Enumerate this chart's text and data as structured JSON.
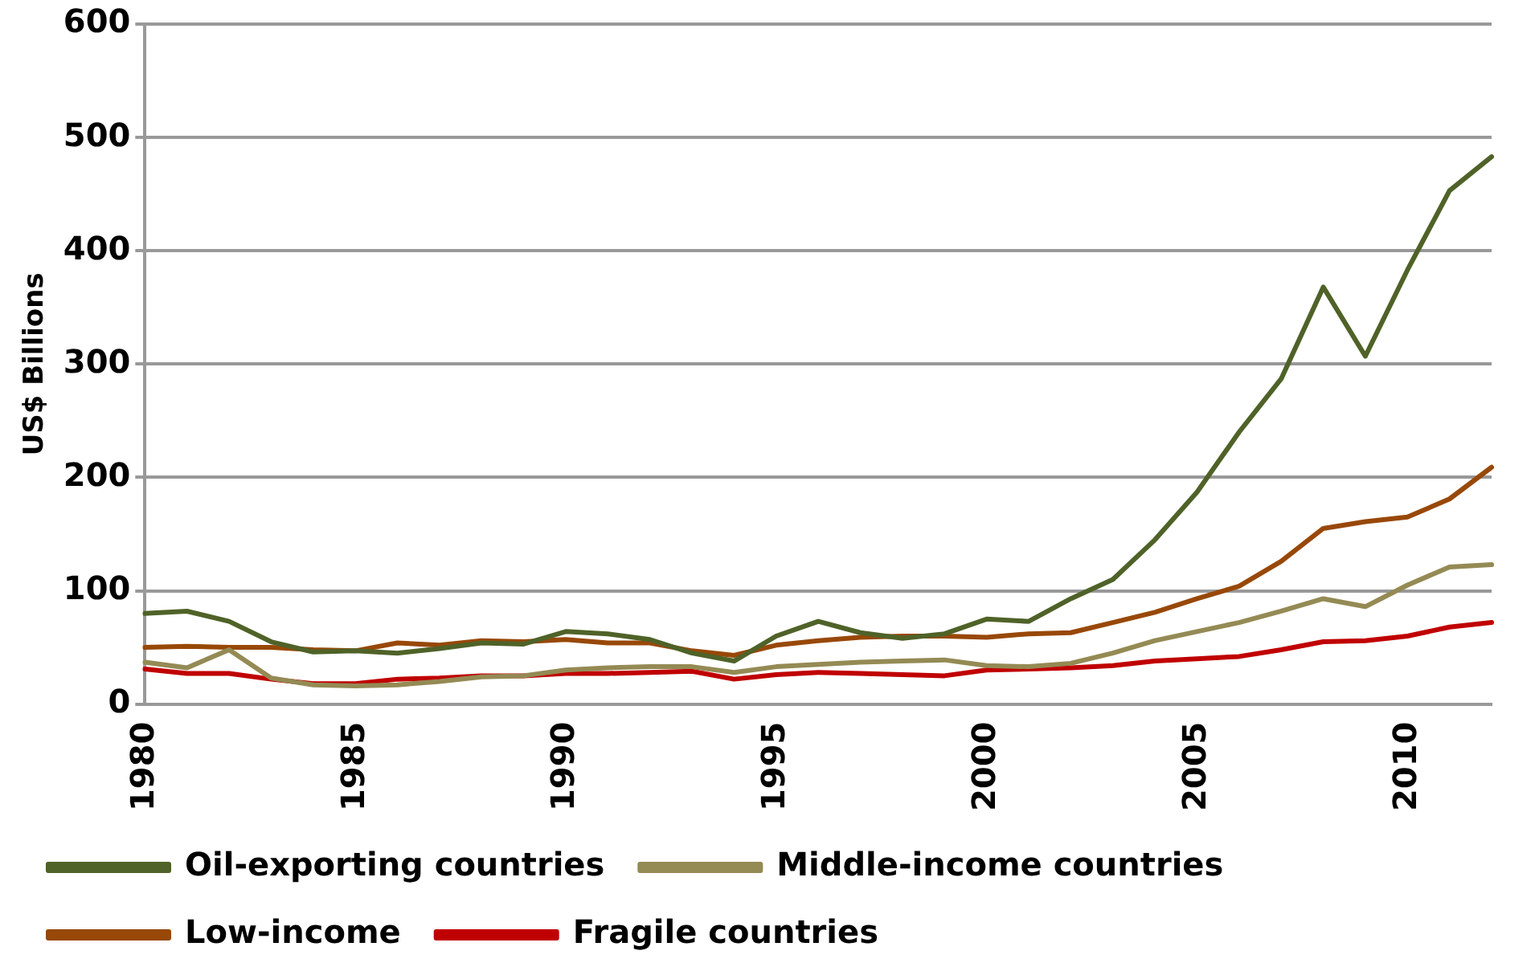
{
  "chart_data": {
    "type": "line",
    "ylabel": "US$ Billions",
    "categories": [
      "1980",
      null,
      null,
      null,
      null,
      "1985",
      null,
      null,
      null,
      null,
      "1990",
      null,
      null,
      null,
      null,
      "1995",
      null,
      null,
      null,
      null,
      "2000",
      null,
      null,
      null,
      null,
      "2005",
      null,
      null,
      null,
      null,
      "2010",
      null,
      null
    ],
    "ylim": [
      0,
      600
    ],
    "yticks": [
      0,
      100,
      200,
      300,
      400,
      500,
      600
    ],
    "grid": "y",
    "legend": "bottom",
    "marker": "none",
    "line_style": "solid",
    "series": [
      {
        "name": "Oil-exporting countries",
        "color": "#4f6228",
        "values": [
          80,
          82,
          73,
          55,
          46,
          47,
          45,
          49,
          54,
          53,
          64,
          62,
          57,
          45,
          38,
          60,
          73,
          63,
          58,
          62,
          75,
          73,
          93,
          110,
          145,
          187,
          240,
          287,
          368,
          307,
          383,
          453,
          483
        ]
      },
      {
        "name": "Middle-income countries",
        "color": "#948a54",
        "values": [
          37,
          32,
          48,
          23,
          17,
          16,
          17,
          20,
          24,
          25,
          30,
          32,
          33,
          33,
          28,
          33,
          35,
          37,
          38,
          39,
          34,
          33,
          36,
          45,
          56,
          64,
          72,
          82,
          93,
          86,
          105,
          121,
          123
        ]
      },
      {
        "name": "Low-income",
        "color": "#984807",
        "values": [
          50,
          51,
          50,
          50,
          48,
          47,
          54,
          52,
          56,
          55,
          57,
          54,
          54,
          47,
          43,
          52,
          56,
          59,
          60,
          60,
          59,
          62,
          63,
          72,
          81,
          93,
          104,
          126,
          155,
          161,
          165,
          181,
          209
        ]
      },
      {
        "name": "Fragile countries",
        "color": "#c00000",
        "values": [
          31,
          27,
          27,
          22,
          18,
          18,
          22,
          23,
          25,
          25,
          27,
          27,
          28,
          29,
          22,
          26,
          28,
          27,
          26,
          25,
          30,
          31,
          32,
          34,
          38,
          40,
          42,
          48,
          55,
          56,
          60,
          68,
          72
        ]
      }
    ]
  }
}
